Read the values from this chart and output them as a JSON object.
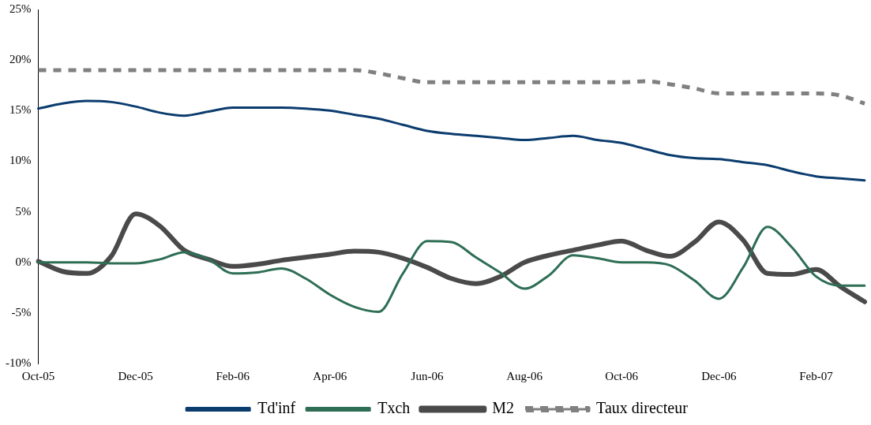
{
  "chart_data": {
    "type": "line",
    "categories": [
      "Oct-05",
      null,
      null,
      null,
      "Dec-05",
      null,
      null,
      null,
      "Feb-06",
      null,
      null,
      null,
      "Apr-06",
      null,
      null,
      null,
      "Jun-06",
      null,
      null,
      null,
      "Aug-06",
      null,
      null,
      null,
      "Oct-06",
      null,
      null,
      null,
      "Dec-06",
      null,
      null,
      null,
      "Feb-07",
      null,
      null
    ],
    "series": [
      {
        "name": "Td'inf",
        "color": "#0b3c6e",
        "values": [
          15.2,
          15.7,
          15.95,
          15.85,
          15.4,
          14.8,
          14.5,
          14.9,
          15.3,
          15.3,
          15.3,
          15.2,
          15.0,
          14.6,
          14.2,
          13.6,
          13.0,
          12.7,
          12.5,
          12.3,
          12.1,
          12.3,
          12.5,
          12.1,
          11.8,
          11.2,
          10.6,
          10.3,
          10.2,
          9.9,
          9.6,
          9.0,
          8.5,
          8.3,
          8.1
        ]
      },
      {
        "name": "Txch",
        "color": "#2e6e55",
        "values": [
          0.0,
          0.0,
          0.0,
          -0.1,
          -0.1,
          0.3,
          1.0,
          0.3,
          -1.1,
          -1.0,
          -0.6,
          -1.6,
          -3.2,
          -4.4,
          -4.9,
          -1.1,
          2.1,
          2.0,
          0.5,
          -1.0,
          -2.6,
          -1.3,
          0.7,
          0.4,
          0.0,
          0.0,
          -0.3,
          -1.8,
          -3.6,
          -0.5,
          3.5,
          1.5,
          -1.4,
          -2.3,
          -2.3
        ]
      },
      {
        "name": "M2",
        "color": "#4a4a4a",
        "values": [
          0.1,
          -0.9,
          -1.1,
          0.6,
          4.8,
          3.6,
          1.2,
          0.3,
          -0.4,
          -0.2,
          0.2,
          0.5,
          0.8,
          1.1,
          1.0,
          0.4,
          -0.5,
          -1.6,
          -2.1,
          -1.4,
          0.0,
          0.7,
          1.2,
          1.7,
          2.1,
          1.2,
          0.6,
          2.0,
          4.0,
          2.2,
          -1.1,
          -1.2,
          -0.7,
          -2.4,
          -3.9
        ]
      },
      {
        "name": "Taux directeur",
        "color": "#808080",
        "line_style": "dashed",
        "values": [
          19,
          19,
          19,
          19,
          19,
          19,
          19,
          19,
          19,
          19,
          19,
          19,
          19,
          19,
          18.7,
          18.2,
          17.8,
          17.8,
          17.8,
          17.8,
          17.8,
          17.8,
          17.8,
          17.8,
          17.8,
          17.9,
          17.6,
          17.2,
          16.7,
          16.7,
          16.7,
          16.7,
          16.7,
          16.5,
          15.7
        ]
      }
    ],
    "ylim": [
      -10,
      25
    ],
    "yticks": [
      {
        "value": -10,
        "label": "-10%"
      },
      {
        "value": -5,
        "label": "-5%"
      },
      {
        "value": 0,
        "label": "0%"
      },
      {
        "value": 5,
        "label": "5%"
      },
      {
        "value": 10,
        "label": "10%"
      },
      {
        "value": 15,
        "label": "15%"
      },
      {
        "value": 20,
        "label": "20%"
      },
      {
        "value": 25,
        "label": "25%"
      }
    ],
    "grid": false,
    "legend": "bottom",
    "marker": "none",
    "line_style": "solid"
  }
}
